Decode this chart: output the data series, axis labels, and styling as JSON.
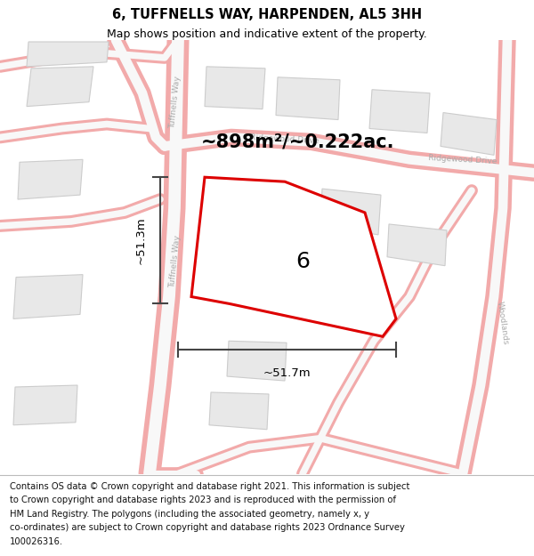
{
  "title": "6, TUFFNELLS WAY, HARPENDEN, AL5 3HH",
  "subtitle": "Map shows position and indicative extent of the property.",
  "area_label": "~898m²/~0.222ac.",
  "number_label": "6",
  "width_label": "~51.7m",
  "height_label": "~51.3m",
  "road_color": "#f2aaaa",
  "road_fill": "#f8f8f8",
  "building_face": "#e8e8e8",
  "building_edge": "#cccccc",
  "highlight_color": "#dd0000",
  "map_bg": "#f9f9f9",
  "footer_lines": [
    "Contains OS data © Crown copyright and database right 2021. This information is subject",
    "to Crown copyright and database rights 2023 and is reproduced with the permission of",
    "HM Land Registry. The polygons (including the associated geometry, namely x, y",
    "co-ordinates) are subject to Crown copyright and database rights 2023 Ordnance Survey",
    "100026316."
  ],
  "title_fontsize": 10.5,
  "subtitle_fontsize": 9,
  "footer_fontsize": 7.2,
  "area_fontsize": 15,
  "number_fontsize": 18,
  "label_fontsize": 9.5
}
